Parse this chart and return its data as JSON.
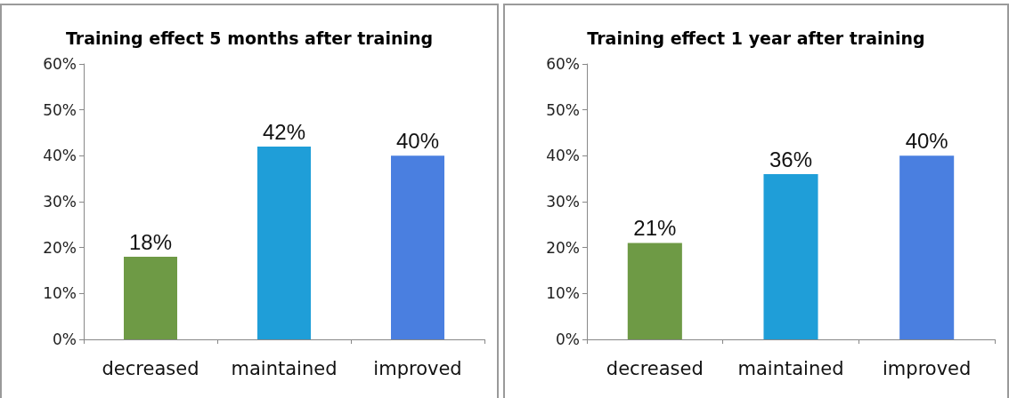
{
  "chart_data": [
    {
      "type": "bar",
      "title": "Training effect 5 months after training",
      "categories": [
        "decreased",
        "maintained",
        "improved"
      ],
      "values": [
        18,
        42,
        40
      ],
      "colors": [
        "#6e9a45",
        "#1f9ed8",
        "#4a7fe0"
      ],
      "value_labels": [
        "18%",
        "42%",
        "40%"
      ],
      "ylim": [
        0,
        60
      ],
      "yticks": [
        {
          "value": 0,
          "label": "0%"
        },
        {
          "value": 10,
          "label": "10%"
        },
        {
          "value": 20,
          "label": "20%"
        },
        {
          "value": 30,
          "label": "30%"
        },
        {
          "value": 40,
          "label": "40%"
        },
        {
          "value": 50,
          "label": "50%"
        },
        {
          "value": 60,
          "label": "60%"
        }
      ],
      "grid": false
    },
    {
      "type": "bar",
      "title": "Training effect 1 year after training",
      "categories": [
        "decreased",
        "maintained",
        "improved"
      ],
      "values": [
        21,
        36,
        40
      ],
      "colors": [
        "#6e9a45",
        "#1f9ed8",
        "#4a7fe0"
      ],
      "value_labels": [
        "21%",
        "36%",
        "40%"
      ],
      "ylim": [
        0,
        60
      ],
      "yticks": [
        {
          "value": 0,
          "label": "0%"
        },
        {
          "value": 10,
          "label": "10%"
        },
        {
          "value": 20,
          "label": "20%"
        },
        {
          "value": 30,
          "label": "30%"
        },
        {
          "value": 40,
          "label": "40%"
        },
        {
          "value": 50,
          "label": "50%"
        },
        {
          "value": 60,
          "label": "60%"
        }
      ],
      "grid": false
    }
  ]
}
